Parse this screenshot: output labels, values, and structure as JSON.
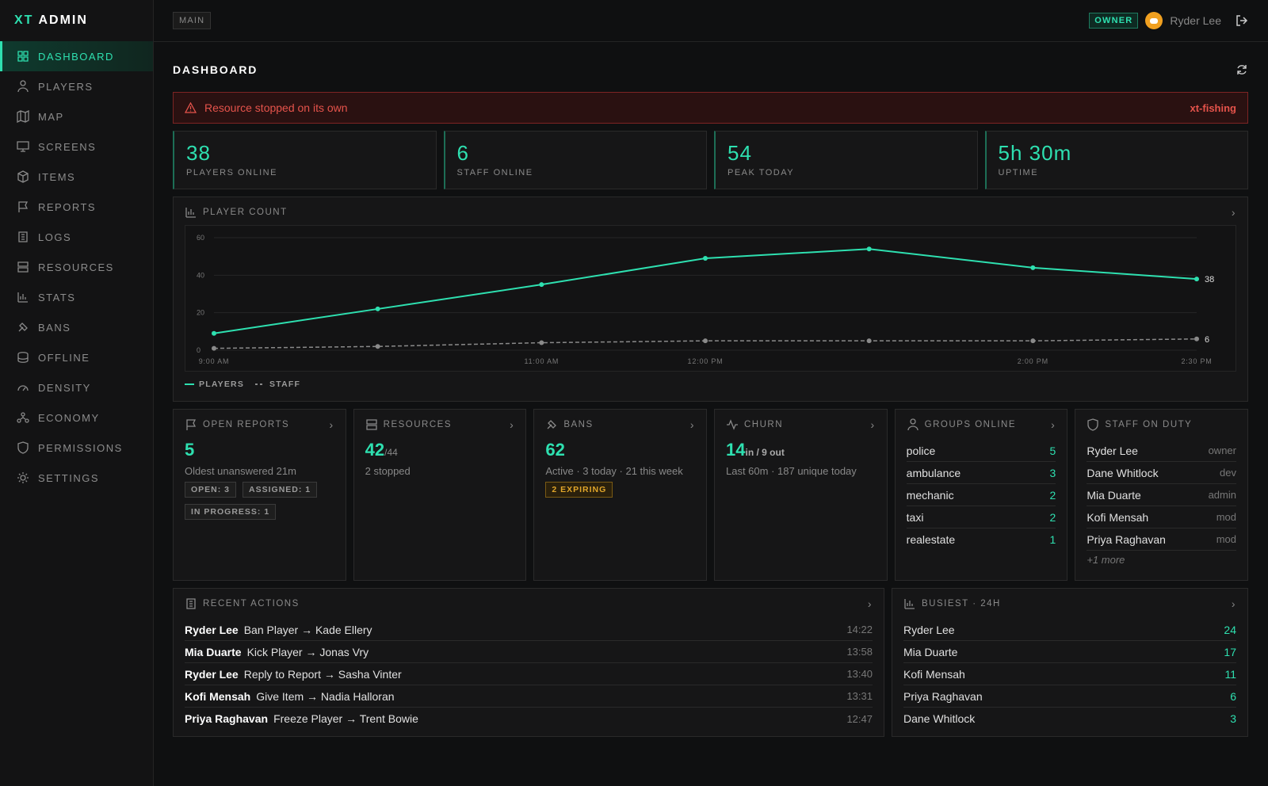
{
  "sidebar": {
    "brand_accent": "XT",
    "brand": "ADMIN",
    "nav": [
      "DASHBOARD",
      "PLAYERS",
      "MAP",
      "SCREENS",
      "ITEMS",
      "REPORTS",
      "LOGS",
      "RESOURCES",
      "STATS",
      "BANS",
      "OFFLINE",
      "DENSITY",
      "ECONOMY",
      "PERMISSIONS",
      "SETTINGS"
    ]
  },
  "header": {
    "tab": "MAIN",
    "role": "OWNER",
    "user": "Ryder Lee"
  },
  "page": {
    "title": "DASHBOARD"
  },
  "alert": {
    "message": "Resource stopped on its own",
    "resource": "xt-fishing"
  },
  "stats": [
    {
      "value": 38,
      "label": "PLAYERS ONLINE"
    },
    {
      "value": 6,
      "label": "STAFF ONLINE"
    },
    {
      "value": 54,
      "label": "PEAK TODAY"
    },
    {
      "value": "5h 30m",
      "label": "UPTIME"
    }
  ],
  "chart_data": {
    "type": "line",
    "title": "PLAYER COUNT",
    "categories": [
      "9:00 AM",
      null,
      "11:00 AM",
      "12:00 PM",
      null,
      "2:00 PM",
      "2:30 PM"
    ],
    "series": [
      {
        "name": "PLAYERS",
        "color": "#2ee0b0",
        "values": [
          9,
          22,
          35,
          49,
          54,
          44,
          38
        ]
      },
      {
        "name": "STAFF",
        "color": "#8a8a8a",
        "values": [
          1,
          2,
          4,
          5,
          5,
          5,
          6
        ]
      }
    ],
    "ylim": [
      0,
      60
    ],
    "yticks": [
      0,
      20,
      40,
      60
    ],
    "grid": true
  },
  "cards": {
    "open_reports": {
      "title": "OPEN REPORTS",
      "value": 5,
      "note": "Oldest unanswered 21m",
      "badges": [
        "OPEN: 3",
        "ASSIGNED: 1",
        "IN PROGRESS: 1"
      ]
    },
    "resources": {
      "title": "RESOURCES",
      "value": 42,
      "total": "/44",
      "note": "2 stopped"
    },
    "bans": {
      "title": "BANS",
      "value": 62,
      "note": "Active · 3 today · 21 this week",
      "badge": "2 EXPIRING"
    },
    "churn": {
      "title": "CHURN",
      "value": 14,
      "suffix": "in / 9 out",
      "note": "Last 60m · 187 unique today"
    },
    "groups": {
      "title": "GROUPS ONLINE",
      "rows": [
        {
          "name": "police",
          "count": 5
        },
        {
          "name": "ambulance",
          "count": 3
        },
        {
          "name": "mechanic",
          "count": 2
        },
        {
          "name": "taxi",
          "count": 2
        },
        {
          "name": "realestate",
          "count": 1
        }
      ]
    },
    "staff": {
      "title": "STAFF ON DUTY",
      "rows": [
        {
          "name": "Ryder Lee",
          "role": "owner"
        },
        {
          "name": "Dane Whitlock",
          "role": "dev"
        },
        {
          "name": "Mia Duarte",
          "role": "admin"
        },
        {
          "name": "Kofi Mensah",
          "role": "mod"
        },
        {
          "name": "Priya Raghavan",
          "role": "mod"
        }
      ],
      "more": "+1 more"
    }
  },
  "recent_actions": {
    "title": "RECENT ACTIONS",
    "rows": [
      {
        "actor": "Ryder Lee",
        "action": "Ban Player → Kade Ellery",
        "time": "14:22"
      },
      {
        "actor": "Mia Duarte",
        "action": "Kick Player → Jonas Vry",
        "time": "13:58"
      },
      {
        "actor": "Ryder Lee",
        "action": "Reply to Report → Sasha Vinter",
        "time": "13:40"
      },
      {
        "actor": "Kofi Mensah",
        "action": "Give Item → Nadia Halloran",
        "time": "13:31"
      },
      {
        "actor": "Priya Raghavan",
        "action": "Freeze Player → Trent Bowie",
        "time": "12:47"
      }
    ]
  },
  "busiest": {
    "title": "BUSIEST · 24H",
    "rows": [
      {
        "name": "Ryder Lee",
        "count": 24
      },
      {
        "name": "Mia Duarte",
        "count": 17
      },
      {
        "name": "Kofi Mensah",
        "count": 11
      },
      {
        "name": "Priya Raghavan",
        "count": 6
      },
      {
        "name": "Dane Whitlock",
        "count": 3
      }
    ]
  }
}
